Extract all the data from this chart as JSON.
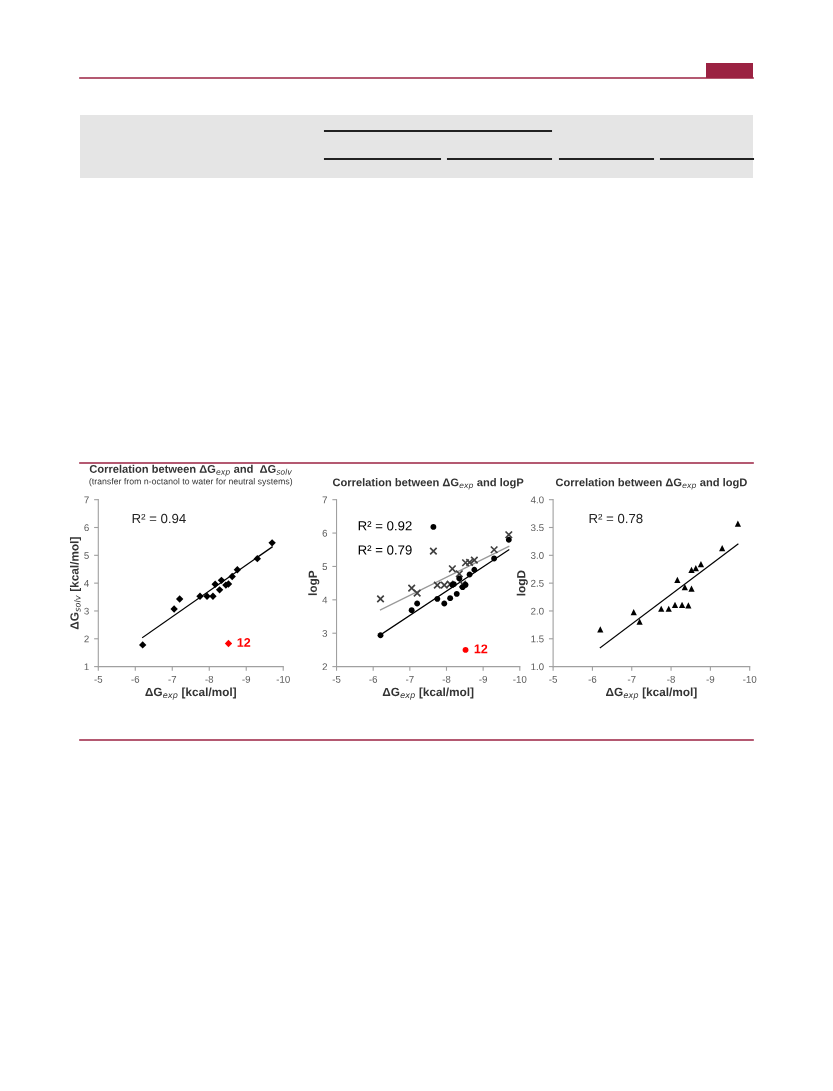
{
  "chart_data": [
    {
      "type": "scatter",
      "title": "Correlation between ΔG$_{exp}$ and  ΔG$_{solv}$",
      "subtitle": "(transfer from n-octanol to water for neutral systems)",
      "xlabel": "ΔG$_{exp}$ [kcal/mol]",
      "ylabel": "ΔG$_{solv}$ [kcal/mol]",
      "xlim": [
        -5,
        -10
      ],
      "xticks": [
        -5,
        -6,
        -7,
        -8,
        -9,
        -10
      ],
      "ylim": [
        1,
        7
      ],
      "yticks": [
        1,
        2,
        3,
        4,
        5,
        6,
        7
      ],
      "grid": false,
      "legend": false,
      "annotations": [
        "R² = 0.94",
        {
          "text": "12",
          "x": -8.52,
          "y": 1.83
        }
      ],
      "series": [
        {
          "marker": "diamond",
          "color": "#000000",
          "x": [
            -6.2,
            -7.05,
            -7.2,
            -7.75,
            -7.94,
            -8.1,
            -8.16,
            -8.28,
            -8.33,
            -8.45,
            -8.52,
            -8.62,
            -8.76,
            -9.3,
            -9.7
          ],
          "values": [
            1.78,
            3.07,
            3.43,
            3.53,
            3.53,
            3.53,
            3.96,
            3.76,
            4.1,
            3.93,
            3.97,
            4.24,
            4.48,
            4.88,
            5.45
          ]
        },
        {
          "marker": "diamond",
          "color": "#ff0000",
          "x": [
            -8.52
          ],
          "values": [
            1.83
          ]
        },
        {
          "type": "line",
          "color": "#000000",
          "x": [
            -6.2,
            -9.7
          ],
          "values": [
            2.05,
            5.3
          ]
        }
      ]
    },
    {
      "type": "scatter",
      "title": "Correlation between ΔG$_{exp}$ and logP",
      "xlabel": "ΔG$_{exp}$ [kcal/mol]",
      "ylabel": "logP",
      "xlim": [
        -5,
        -10
      ],
      "xticks": [
        -5,
        -6,
        -7,
        -8,
        -9,
        -10
      ],
      "ylim": [
        2,
        7
      ],
      "yticks": [
        2,
        3,
        4,
        5,
        6,
        7
      ],
      "grid": false,
      "legend": "top left",
      "series": [
        {
          "type": "line",
          "color": "#999999",
          "x": [
            -6.2,
            -9.7
          ],
          "values": [
            3.7,
            5.6
          ]
        },
        {
          "type": "line",
          "color": "#000000",
          "x": [
            -6.2,
            -9.7
          ],
          "values": [
            2.95,
            5.5
          ]
        },
        {
          "name": "R² = 0.79",
          "marker": "cross",
          "color": "#404040",
          "x": [
            -6.2,
            -7.05,
            -7.2,
            -7.75,
            -7.94,
            -8.1,
            -8.16,
            -8.35,
            -8.44,
            -8.52,
            -8.63,
            -8.76,
            -9.3,
            -9.7
          ],
          "values": [
            4.03,
            4.35,
            4.2,
            4.44,
            4.44,
            4.47,
            4.93,
            4.78,
            4.47,
            5.11,
            5.12,
            5.19,
            5.5,
            5.95
          ]
        },
        {
          "name": "R² = 0.92",
          "marker": "circle",
          "color": "#000000",
          "x": [
            -6.2,
            -7.05,
            -7.2,
            -7.75,
            -7.94,
            -8.1,
            -8.16,
            -8.2,
            -8.28,
            -8.35,
            -8.44,
            -8.52,
            -8.63,
            -8.76,
            -9.3,
            -9.7
          ],
          "values": [
            2.94,
            3.69,
            3.89,
            4.03,
            3.89,
            4.05,
            4.45,
            4.47,
            4.18,
            4.64,
            4.38,
            4.45,
            4.76,
            4.9,
            5.24,
            5.8
          ]
        },
        {
          "marker": "circle",
          "color": "#ff0000",
          "x": [
            -8.52
          ],
          "values": [
            2.5
          ]
        }
      ],
      "annotations": [
        {
          "text": "12",
          "x": -8.52,
          "y": 2.5
        }
      ]
    },
    {
      "type": "scatter",
      "title": "Correlation between ΔG$_{exp}$ and logD",
      "xlabel": "ΔG$_{exp}$ [kcal/mol]",
      "ylabel": "logD",
      "xlim": [
        -5,
        -10
      ],
      "xticks": [
        -5,
        -6,
        -7,
        -8,
        -9,
        -10
      ],
      "ylim": [
        1,
        4
      ],
      "yticks": [
        {
          "value": 1,
          "label": "1.0"
        },
        {
          "value": 1.5,
          "label": "1.5"
        },
        {
          "value": 2,
          "label": "2.0"
        },
        {
          "value": 2.5,
          "label": "2.5"
        },
        {
          "value": 3,
          "label": "3.0"
        },
        {
          "value": 3.5,
          "label": "3.5"
        },
        {
          "value": 4,
          "label": "4.0"
        }
      ],
      "grid": false,
      "legend": false,
      "annotations": [
        "R² = 0.78"
      ],
      "series": [
        {
          "marker": "triangle",
          "color": "#000000",
          "x": [
            -6.2,
            -7.05,
            -7.2,
            -7.75,
            -7.94,
            -8.1,
            -8.16,
            -8.28,
            -8.35,
            -8.44,
            -8.52,
            -8.52,
            -8.63,
            -8.76,
            -9.3,
            -9.7
          ],
          "values": [
            1.67,
            1.98,
            1.81,
            2.04,
            2.04,
            2.11,
            2.56,
            2.11,
            2.43,
            2.1,
            2.74,
            2.4,
            2.77,
            2.84,
            3.13,
            3.57
          ]
        },
        {
          "type": "line",
          "color": "#000000",
          "x": [
            -6.2,
            -9.7
          ],
          "values": [
            1.34,
            3.2
          ]
        }
      ]
    }
  ]
}
